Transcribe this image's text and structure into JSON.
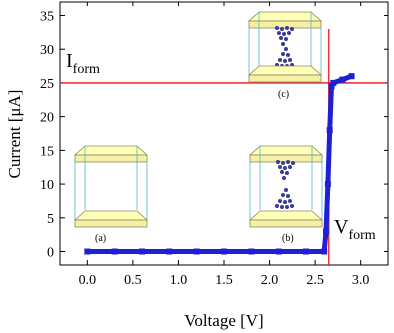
{
  "chart_data": {
    "type": "line",
    "xlabel": "Voltage [V]",
    "ylabel": "Current [μA]",
    "xlim": [
      -0.3,
      3.3
    ],
    "ylim": [
      -2,
      37
    ],
    "x_ticks": [
      0.0,
      0.5,
      1.0,
      1.5,
      2.0,
      2.5,
      3.0
    ],
    "x_tick_labels": [
      "0.0",
      "0.5",
      "1.0",
      "1.5",
      "2.0",
      "2.5",
      "3.0"
    ],
    "y_ticks": [
      0,
      5,
      10,
      15,
      20,
      25,
      30,
      35
    ],
    "y_tick_labels": [
      "0",
      "5",
      "10",
      "15",
      "20",
      "25",
      "30",
      "35"
    ],
    "grid": false,
    "series": [
      {
        "color": "#1f1fd6",
        "points": [
          [
            0.0,
            0.0
          ],
          [
            0.3,
            0.0
          ],
          [
            0.6,
            0.0
          ],
          [
            0.9,
            0.0
          ],
          [
            1.2,
            0.0
          ],
          [
            1.5,
            0.0
          ],
          [
            1.8,
            0.0
          ],
          [
            2.1,
            0.0
          ],
          [
            2.4,
            0.0
          ],
          [
            2.6,
            0.0
          ],
          [
            2.62,
            3.0
          ],
          [
            2.64,
            10.0
          ],
          [
            2.66,
            18.0
          ],
          [
            2.68,
            24.5
          ],
          [
            2.7,
            25.0
          ],
          [
            2.8,
            25.5
          ],
          [
            2.9,
            26.0
          ]
        ]
      }
    ],
    "reference_lines": [
      {
        "orientation": "horizontal",
        "value": 25,
        "color": "#e8141c"
      },
      {
        "orientation": "vertical",
        "value": 2.65,
        "color": "#e8141c"
      }
    ],
    "annotations": {
      "iform_main": "I",
      "iform_sub": "form",
      "vform_main": "V",
      "vform_sub": "form",
      "caption_a": "(a)",
      "caption_b": "(b)",
      "caption_c": "(c)"
    }
  }
}
